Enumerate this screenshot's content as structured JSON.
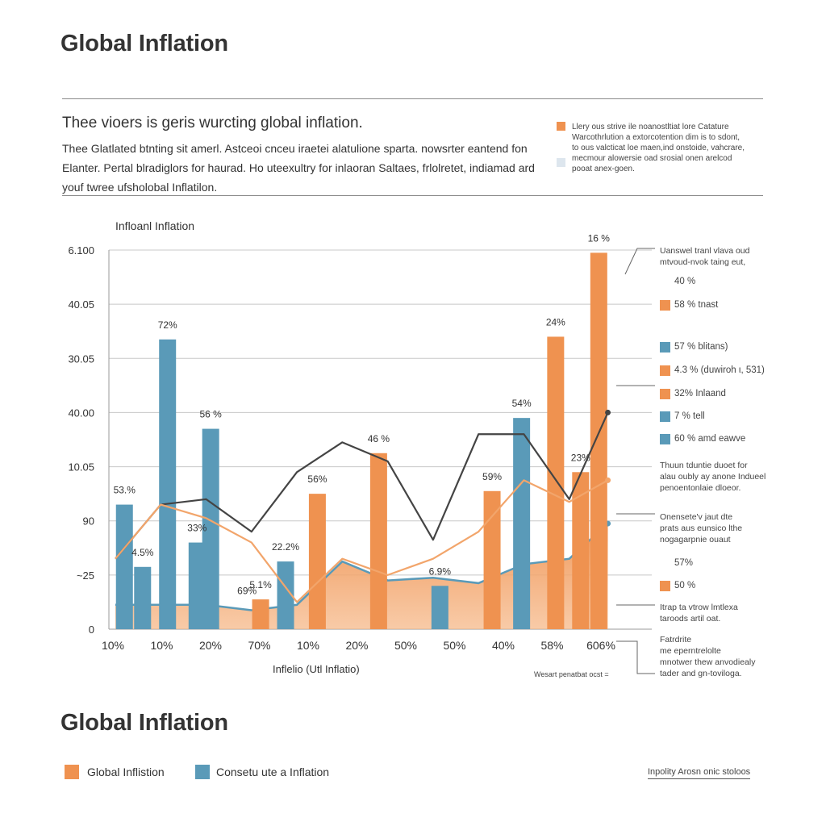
{
  "header": {
    "title": "Global Inflation",
    "subtitle": "Thee vioers is geris wurcting global inflation.",
    "paragraph": [
      "Thee Glatlated btnting sit amerl. Astceoi cnceu iraetei alatulione sparta. nowsrter eantend fon",
      "Elanter. Pertal blradiglors  for haurad. Ho uteexultry for inlaoran Saltaes, frlolretet, indiamad ard",
      "youf twree ufsholobal Inflatilon."
    ]
  },
  "info_box": {
    "lines": [
      "Llery ous strive ile noanostltiat lore Catature",
      "Warcothrlution a extorcotention dim is to sdont,",
      "to ous valcticat loe maen,ind onstoide, vahcrare,",
      "mecmour alowersie oad srosial onen arelcod",
      "pooat anex-goen."
    ],
    "colors": [
      "#ef9250",
      "#dde6ee"
    ]
  },
  "chart_data": {
    "type": "bar",
    "title": "Infloanl Inflation",
    "xlabel": "Inflelio (Utl Inflatio)",
    "ylabel": "",
    "y_tick_labels": [
      "0",
      "~25",
      "90",
      "10.05",
      "40.00",
      "30.05",
      "40.05",
      "6.100"
    ],
    "x_tick_labels": [
      "10%",
      "10%",
      "20%",
      "70%",
      "10%",
      "20%",
      "50%",
      "50%",
      "40%",
      "58%",
      "606%"
    ],
    "grid": true,
    "bars": [
      {
        "x": 0.2,
        "value": 2.3,
        "series": "Consetu ute a Inflation",
        "label": "53.%"
      },
      {
        "x": 0.6,
        "value": 1.15,
        "series": "Consetu ute a Inflation",
        "label": "4.5%"
      },
      {
        "x": 1.15,
        "value": 5.35,
        "series": "Consetu ute a Inflation",
        "label": "72%"
      },
      {
        "x": 1.8,
        "value": 1.6,
        "series": "Consetu ute a Inflation",
        "label": "33%"
      },
      {
        "x": 2.1,
        "value": 3.7,
        "series": "Consetu ute a Inflation",
        "label": "56 %"
      },
      {
        "x": 3.2,
        "value": 0.55,
        "series": "Global Inflistion",
        "label": "5.1%"
      },
      {
        "x": 3.75,
        "value": 1.25,
        "series": "Consetu ute a Inflation",
        "label": "22.2%"
      },
      {
        "x": 4.45,
        "value": 2.5,
        "series": "Global Inflistion",
        "label": "56%"
      },
      {
        "x": 5.8,
        "value": 3.25,
        "series": "Global Inflistion",
        "label": "46 %"
      },
      {
        "x": 7.15,
        "value": 0.8,
        "series": "Consetu ute a Inflation",
        "label": "6.9%"
      },
      {
        "x": 8.3,
        "value": 2.55,
        "series": "Global Inflistion",
        "label": "59%"
      },
      {
        "x": 8.95,
        "value": 3.9,
        "series": "Consetu ute a Inflation",
        "label": "54%"
      },
      {
        "x": 9.7,
        "value": 5.4,
        "series": "Global Inflistion",
        "label": "24%"
      },
      {
        "x": 10.25,
        "value": 2.9,
        "series": "Global Inflistion",
        "label": "23%"
      },
      {
        "x": 10.65,
        "value": 6.95,
        "series": "Global Inflistion",
        "label": "16 %"
      }
    ],
    "extra_labels": [
      {
        "x": 2.9,
        "value": 0.5,
        "label": "69%"
      }
    ],
    "series": [
      {
        "name": "Global Inflistion",
        "color": "#ef9250"
      },
      {
        "name": "Consetu ute a Inflation",
        "color": "#5a9ab8"
      }
    ],
    "lines": [
      {
        "color": "#444444",
        "points": [
          [
            0,
            1.3
          ],
          [
            1,
            2.3
          ],
          [
            2,
            2.4
          ],
          [
            3,
            1.8
          ],
          [
            4,
            2.9
          ],
          [
            5,
            3.45
          ],
          [
            6,
            3.1
          ],
          [
            7,
            1.65
          ],
          [
            8,
            3.6
          ],
          [
            9,
            3.6
          ],
          [
            10,
            2.4
          ],
          [
            10.85,
            4.0
          ]
        ]
      },
      {
        "color": "#f2a56b",
        "points": [
          [
            0,
            1.3
          ],
          [
            1,
            2.3
          ],
          [
            2,
            2.05
          ],
          [
            3,
            1.6
          ],
          [
            4,
            0.5
          ],
          [
            5,
            1.3
          ],
          [
            6,
            1.0
          ],
          [
            7,
            1.3
          ],
          [
            8,
            1.8
          ],
          [
            9,
            2.75
          ],
          [
            10,
            2.35
          ],
          [
            10.85,
            2.75
          ]
        ]
      }
    ],
    "area": {
      "top_line_color": "#5a9ab8",
      "points": [
        [
          0,
          0.45
        ],
        [
          1,
          0.45
        ],
        [
          2,
          0.45
        ],
        [
          3,
          0.35
        ],
        [
          4,
          0.45
        ],
        [
          5,
          1.25
        ],
        [
          6,
          0.9
        ],
        [
          7,
          0.95
        ],
        [
          8,
          0.85
        ],
        [
          9,
          1.2
        ],
        [
          10,
          1.3
        ],
        [
          10.85,
          1.95
        ]
      ]
    }
  },
  "right_panel": {
    "top_note": [
      "Uanswel tranl vlava oud",
      "mtvoud-nvok taing eut,"
    ],
    "items": [
      {
        "text": "40 %",
        "color": ""
      },
      {
        "text": "58 % tnast",
        "color": "#ef9250"
      },
      {
        "text": "57 % blitans)",
        "color": "#5a9ab8"
      },
      {
        "text": "4.3 % (duwiroh ι, 531)",
        "color": "#ef9250"
      },
      {
        "text": "32% Inlaand",
        "color": "#ef9250"
      },
      {
        "text": "7 % tell",
        "color": "#5a9ab8"
      },
      {
        "text": "60 % amd eawve",
        "color": "#5a9ab8"
      }
    ],
    "note_a": [
      "Thuun tduntie duoet for",
      "alau oubly ay anone Indueel",
      "penoentonlaie dloeor."
    ],
    "note_b": [
      "Onensete'v jaut dte",
      "prats aus eunsico lthe",
      "nogagarpnie ouaut"
    ],
    "pct_a": "57%",
    "pct_b_text": "50 %",
    "note_c": [
      "Itrap ta vtrow lmtlexa",
      "taroods artil oat."
    ],
    "note_d": [
      "Fatrdrite",
      "me eperntrelolte",
      "mnotwer thew anvodiealy",
      "tader and gn-toviloga."
    ],
    "footnote": "Wesart penatbat ocst ="
  },
  "footer": {
    "title": "Global Inflation",
    "legend": [
      "Global Inflistion",
      "Consetu ute a Inflation"
    ],
    "right_text": "Inpolity Arosn onic stoloos"
  },
  "colors": {
    "orange": "#ef9250",
    "blue": "#5a9ab8",
    "dark_line": "#444444",
    "light_orange": "#f2a56b"
  }
}
